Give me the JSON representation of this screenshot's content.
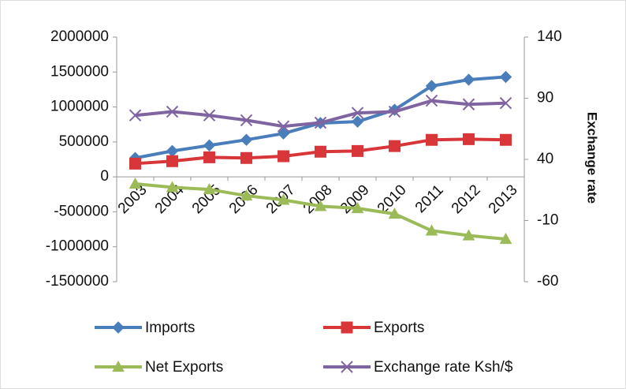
{
  "chart_data": {
    "type": "line",
    "categories": [
      "2003",
      "2004",
      "2005",
      "2006",
      "2007",
      "2008",
      "2009",
      "2010",
      "2011",
      "2012",
      "2013"
    ],
    "series": [
      {
        "name": "Imports",
        "color": "#4a7ebb",
        "marker": "diamond",
        "values": [
          270000,
          370000,
          450000,
          530000,
          620000,
          770000,
          790000,
          960000,
          1300000,
          1390000,
          1430000
        ]
      },
      {
        "name": "Exports",
        "color": "#d9363a",
        "marker": "square",
        "values": [
          190000,
          225000,
          280000,
          270000,
          295000,
          360000,
          370000,
          440000,
          530000,
          540000,
          530000
        ]
      },
      {
        "name": "Net Exports",
        "color": "#9bbb59",
        "marker": "triangle",
        "values": [
          -100000,
          -150000,
          -180000,
          -270000,
          -330000,
          -420000,
          -450000,
          -530000,
          -770000,
          -840000,
          -890000
        ]
      },
      {
        "name": "Exchange rate Ksh/$",
        "color": "#8064a2",
        "marker": "x",
        "axis": "y2",
        "values": [
          76,
          79,
          76,
          72,
          67,
          70,
          78,
          79,
          88,
          85,
          86
        ]
      }
    ],
    "ylim": [
      -1500000,
      2000000
    ],
    "yticks": [
      -1500000,
      -1000000,
      -500000,
      0,
      500000,
      1000000,
      1500000,
      2000000
    ],
    "y2lim": [
      -60,
      140
    ],
    "y2ticks": [
      -60,
      -10,
      40,
      90,
      140
    ],
    "y2label": "Exchange rate"
  }
}
